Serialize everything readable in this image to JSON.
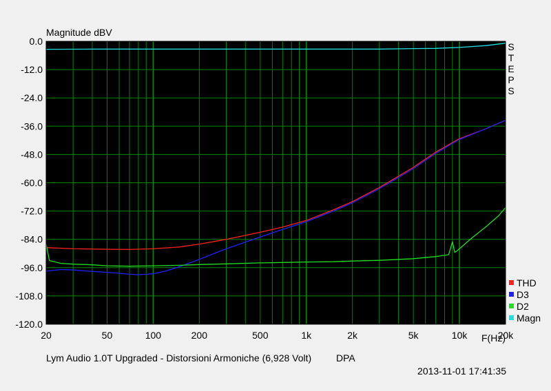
{
  "chart_data": {
    "type": "line",
    "title": "Magnitude dBV",
    "ylabel": "Magnitude dBV",
    "xlabel": "F(Hz)",
    "x_scale": "log",
    "xlim": [
      20,
      20000
    ],
    "ylim": [
      -120,
      0
    ],
    "grid": true,
    "background_color": "#000000",
    "grid_color": "#008800",
    "ytick_values": [
      0,
      -12,
      -24,
      -36,
      -48,
      -60,
      -72,
      -84,
      -96,
      -108,
      -120
    ],
    "ytick_labels": [
      "0.0",
      "-12.0",
      "-24.0",
      "-36.0",
      "-48.0",
      "-60.0",
      "-72.0",
      "-84.0",
      "-96.0",
      "-108.0",
      "-120.0"
    ],
    "xtick_values": [
      20,
      50,
      100,
      200,
      500,
      1000,
      2000,
      5000,
      10000,
      20000
    ],
    "xtick_labels": [
      "20",
      "50",
      "100",
      "200",
      "500",
      "1k",
      "2k",
      "5k",
      "10k",
      "20k"
    ],
    "side_label": "STEPS",
    "legend_position": "bottom-right",
    "series": [
      {
        "name": "THD",
        "color": "#ff2020",
        "x": [
          20,
          30,
          50,
          70,
          100,
          150,
          200,
          300,
          500,
          700,
          1000,
          1500,
          2000,
          3000,
          5000,
          7000,
          10000,
          15000,
          20000
        ],
        "y": [
          -87.5,
          -88.0,
          -88.2,
          -88.3,
          -88.0,
          -87.2,
          -86.0,
          -84.0,
          -81.0,
          -78.8,
          -76.0,
          -71.5,
          -68.0,
          -62.0,
          -53.5,
          -47.0,
          -41.3,
          -37.0,
          -33.5
        ]
      },
      {
        "name": "D3",
        "color": "#2020ff",
        "x": [
          20,
          25,
          30,
          40,
          50,
          60,
          70,
          80,
          100,
          120,
          150,
          200,
          300,
          500,
          700,
          1000,
          1500,
          2000,
          3000,
          5000,
          7000,
          10000,
          15000,
          20000
        ],
        "y": [
          -97.5,
          -96.8,
          -97.0,
          -97.6,
          -98.0,
          -98.4,
          -98.8,
          -99.0,
          -98.6,
          -97.5,
          -95.5,
          -92.5,
          -88.0,
          -83.0,
          -79.8,
          -76.5,
          -72.0,
          -68.5,
          -62.5,
          -54.0,
          -47.5,
          -41.6,
          -37.0,
          -33.5
        ]
      },
      {
        "name": "D2",
        "color": "#20e020",
        "x": [
          20,
          21,
          25,
          30,
          40,
          50,
          70,
          100,
          150,
          200,
          300,
          500,
          700,
          1000,
          1500,
          2000,
          3000,
          5000,
          7000,
          8500,
          9000,
          9300,
          9600,
          10000,
          12000,
          15000,
          18000,
          20000
        ],
        "y": [
          -86.0,
          -93.0,
          -94.2,
          -94.5,
          -94.8,
          -95.2,
          -95.4,
          -95.2,
          -95.0,
          -94.7,
          -94.4,
          -94.0,
          -93.8,
          -93.6,
          -93.5,
          -93.2,
          -92.9,
          -92.2,
          -91.3,
          -90.5,
          -85.0,
          -89.5,
          -89.0,
          -88.0,
          -83.5,
          -78.5,
          -74.0,
          -70.5
        ]
      },
      {
        "name": "Magn",
        "color": "#20e0e0",
        "x": [
          20,
          50,
          100,
          200,
          500,
          1000,
          2000,
          3000,
          5000,
          7000,
          10000,
          15000,
          20000
        ],
        "y": [
          -3.4,
          -3.3,
          -3.3,
          -3.3,
          -3.3,
          -3.3,
          -3.3,
          -3.3,
          -3.1,
          -3.0,
          -2.6,
          -1.8,
          -0.8
        ]
      }
    ]
  },
  "footer": {
    "caption": "Lym Audio 1.0T Upgraded - Distorsioni Armoniche (6,928 Volt)",
    "source": "DPA",
    "timestamp": "2013-11-01 17:41:35"
  }
}
